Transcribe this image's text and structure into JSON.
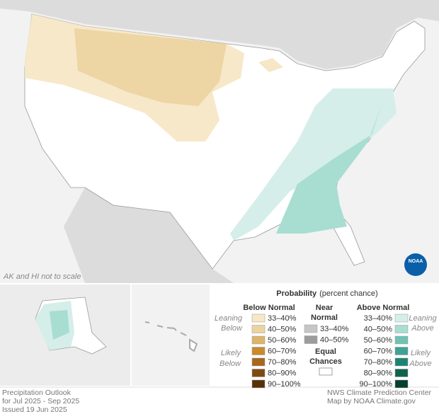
{
  "map": {
    "note": "AK and HI not to scale",
    "logo": "NOAA"
  },
  "legend": {
    "title": "Probability",
    "subtitle": "(percent chance)",
    "below": {
      "header": "Below Normal",
      "leaning": [
        "Leaning",
        "Below"
      ],
      "likely": [
        "Likely",
        "Below"
      ],
      "ranges": [
        "33–40%",
        "40–50%",
        "50–60%",
        "60–70%",
        "70–80%",
        "80–90%",
        "90–100%"
      ],
      "colors": [
        "#f6e7c6",
        "#ecd3a0",
        "#dcb46c",
        "#c88b2e",
        "#a8671d",
        "#7e4a12",
        "#573108"
      ]
    },
    "near": {
      "header": [
        "Near",
        "Normal"
      ],
      "ranges": [
        "33–40%",
        "40–50%"
      ],
      "colors": [
        "#c6c6c6",
        "#9c9c9c"
      ]
    },
    "equal": {
      "label": [
        "Equal",
        "Chances"
      ],
      "color": "#ffffff"
    },
    "above": {
      "header": "Above Normal",
      "leaning": [
        "Leaning",
        "Above"
      ],
      "likely": [
        "Likely",
        "Above"
      ],
      "ranges": [
        "33–40%",
        "40–50%",
        "50–60%",
        "60–70%",
        "70–80%",
        "80–90%",
        "90–100%"
      ],
      "colors": [
        "#d5eee9",
        "#a8ddd2",
        "#6dc4b2",
        "#3ea394",
        "#1f8373",
        "#10624f",
        "#063f30"
      ]
    }
  },
  "footer": {
    "left": [
      "Precipitation Outlook",
      "for Jul 2025 - Sep 2025",
      "Issued 19 Jun 2025"
    ],
    "right": [
      "NWS Climate Prediction Center",
      "Map by NOAA Climate.gov"
    ]
  }
}
